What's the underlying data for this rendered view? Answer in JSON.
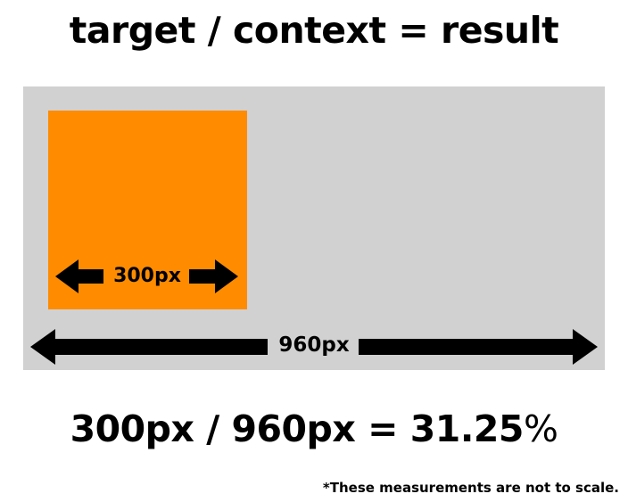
{
  "title": "target / context = result",
  "target": {
    "width_label": "300px",
    "color": "#ff8c00"
  },
  "context": {
    "width_label": "960px",
    "color": "#d1d1d1"
  },
  "equation": {
    "expression": "300px / 960px = 31.25",
    "percent_sign": "%"
  },
  "footnote": "*These measurements are not to scale."
}
